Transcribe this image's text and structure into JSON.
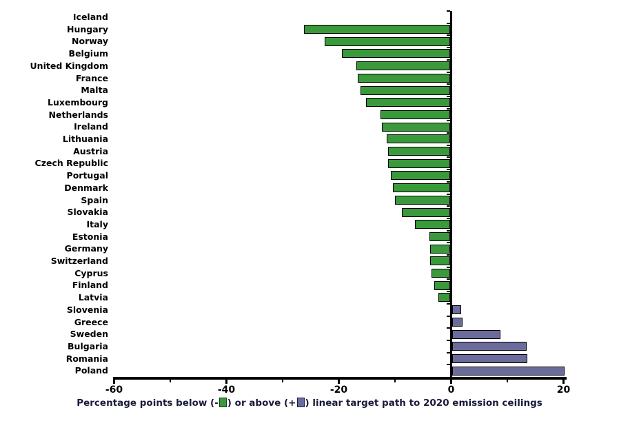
{
  "chart_data": {
    "type": "bar",
    "orientation": "horizontal",
    "title": "",
    "xlabel": "Percentage points below (-) or above (+) linear target path to 2020 emission ceilings",
    "ylabel": "",
    "xlim": [
      -60,
      20
    ],
    "x_ticks": [
      -60,
      -40,
      -20,
      0,
      20
    ],
    "x_minor_ticks": [
      -50,
      -30,
      -10,
      10
    ],
    "grid": false,
    "legend_position": "bottom-caption",
    "categories": [
      "Iceland",
      "Hungary",
      "Norway",
      "Belgium",
      "United Kingdom",
      "France",
      "Malta",
      "Luxembourg",
      "Netherlands",
      "Ireland",
      "Lithuania",
      "Austria",
      "Czech Republic",
      "Portugal",
      "Denmark",
      "Spain",
      "Slovakia",
      "Italy",
      "Estonia",
      "Germany",
      "Switzerland",
      "Cyprus",
      "Finland",
      "Latvia",
      "Slovenia",
      "Greece",
      "Sweden",
      "Bulgaria",
      "Romania",
      "Poland"
    ],
    "values": [
      0,
      -26.0,
      -22.3,
      -19.3,
      -16.7,
      -16.4,
      -16.0,
      -15.0,
      -12.4,
      -12.1,
      -11.3,
      -11.0,
      -11.0,
      -10.6,
      -10.2,
      -9.8,
      -8.6,
      -6.3,
      -3.7,
      -3.6,
      -3.5,
      -3.3,
      -2.8,
      -2.1,
      1.6,
      1.9,
      8.6,
      13.2,
      13.4,
      20.0
    ]
  },
  "colors": {
    "below_bar": "#3a993b",
    "above_bar": "#6c6c9c",
    "bar_border": "#000000",
    "axis": "#000000",
    "caption_text": "#1a1a3a",
    "green_swatch_border": "#143d14",
    "purple_swatch_border": "#1a1a4a"
  },
  "caption": {
    "part1": "Percentage points below (-",
    "part2": ") or above (+",
    "part3": ") linear target path to 2020 emission ceilings"
  },
  "legend": [
    {
      "name": "below",
      "meaning": "Percentage points below linear target path",
      "color": "#3a993b"
    },
    {
      "name": "above",
      "meaning": "Percentage points above linear target path",
      "color": "#6c6c9c"
    }
  ]
}
